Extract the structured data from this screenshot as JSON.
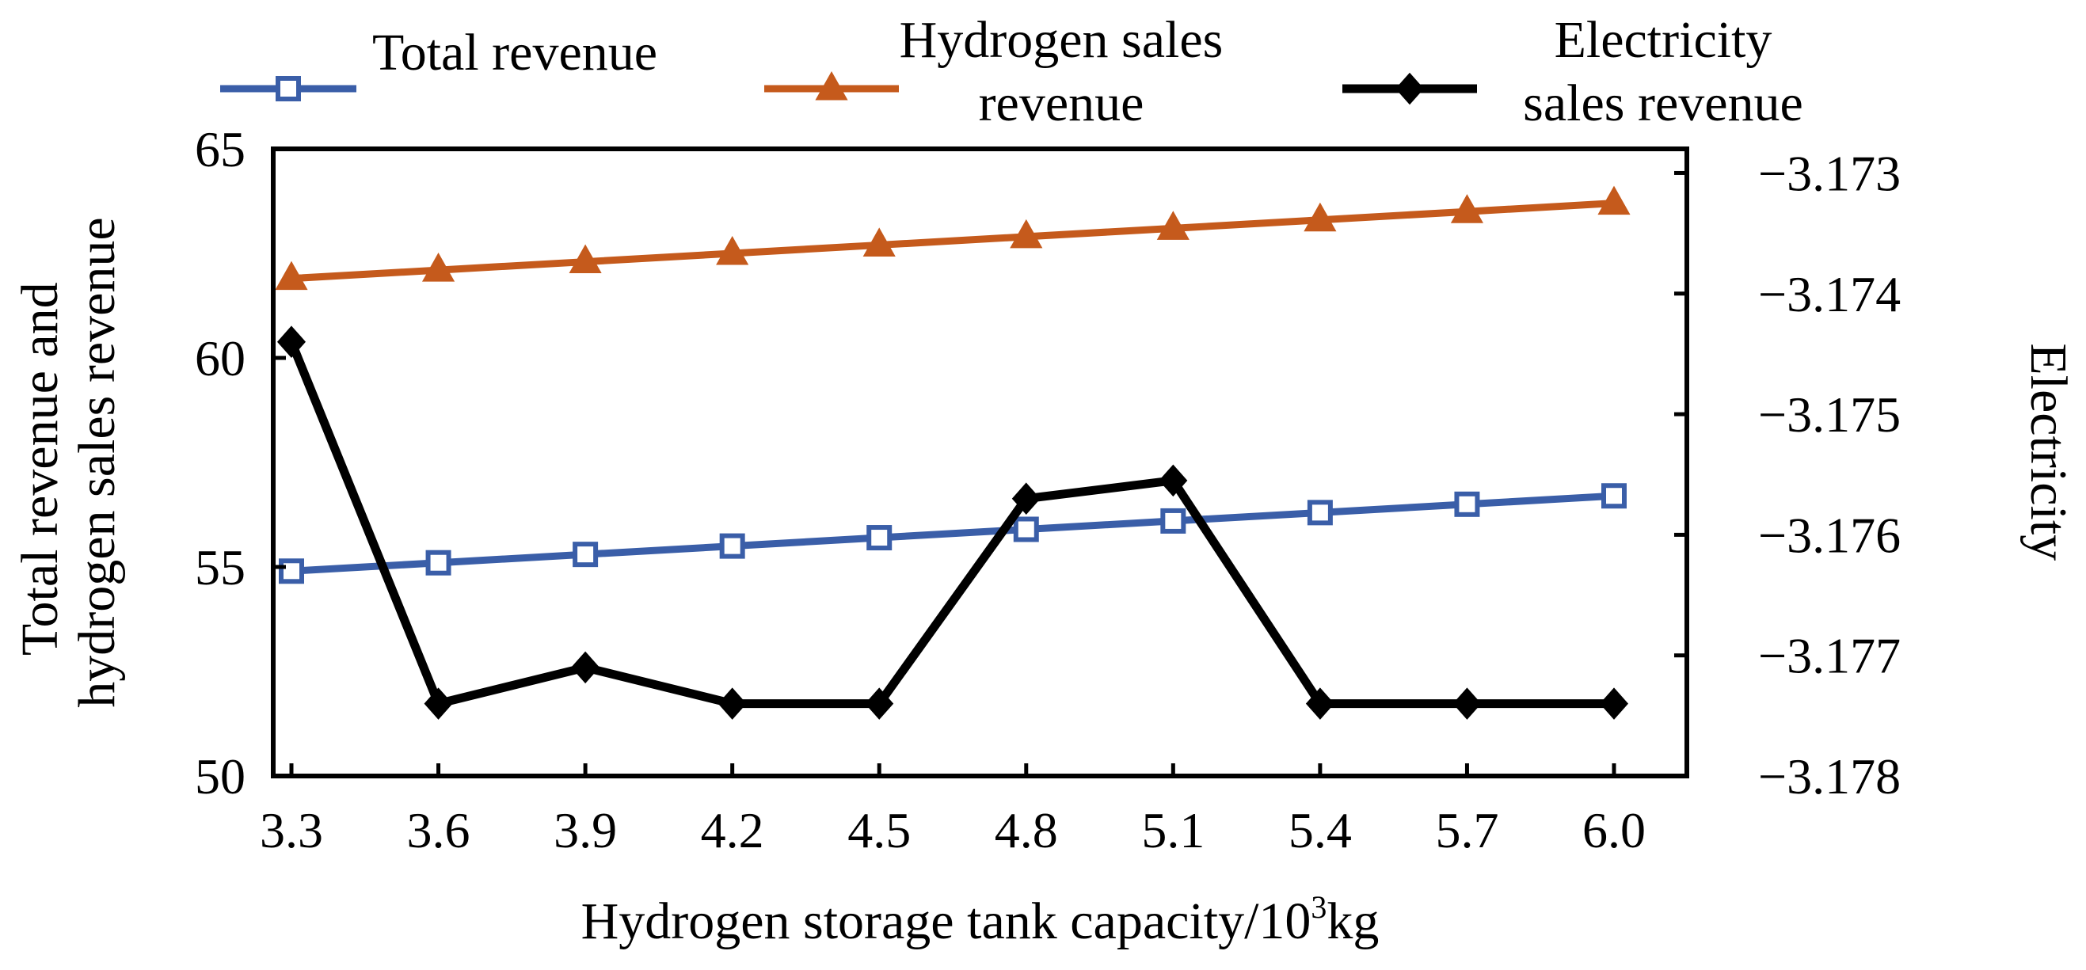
{
  "chart_data": {
    "type": "line",
    "xlabel": "Hydrogen storage tank capacity/10",
    "xlabel_sup": "3",
    "xlabel_unit": "kg",
    "x_ticks": [
      "3.3",
      "3.6",
      "3.9",
      "4.2",
      "4.5",
      "4.8",
      "5.1",
      "5.4",
      "5.7",
      "6.0"
    ],
    "ylabel_left": [
      "Total revenue and",
      "hydrogen sales revenue"
    ],
    "ylabel_right": [
      "Electricity",
      "sales revenue"
    ],
    "ylim_left": [
      50,
      65
    ],
    "yticks_left": [
      "50",
      "55",
      "60",
      "65"
    ],
    "ylim_right": [
      -3.178,
      -3.1728
    ],
    "yticks_right": [
      "−3.178",
      "−3.177",
      "−3.176",
      "−3.175",
      "−3.174",
      "−3.173"
    ],
    "grid": false,
    "legend_position": "top",
    "series": [
      {
        "name": "Total revenue",
        "legend_lines": [
          "Total revenue"
        ],
        "axis": "left",
        "color": "#3a5ea8",
        "marker": "square-open",
        "x": [
          3.3,
          3.6,
          3.9,
          4.2,
          4.5,
          4.8,
          5.1,
          5.4,
          5.7,
          6.0
        ],
        "values": [
          54.9,
          55.1,
          55.3,
          55.5,
          55.7,
          55.9,
          56.1,
          56.3,
          56.5,
          56.7
        ]
      },
      {
        "name": "Hydrogen sales revenue",
        "legend_lines": [
          "Hydrogen sales",
          "revenue"
        ],
        "axis": "left",
        "color": "#c55a1c",
        "marker": "triangle",
        "x": [
          3.3,
          3.6,
          3.9,
          4.2,
          4.5,
          4.8,
          5.1,
          5.4,
          5.7,
          6.0
        ],
        "values": [
          61.9,
          62.1,
          62.3,
          62.5,
          62.7,
          62.9,
          63.1,
          63.3,
          63.5,
          63.7
        ]
      },
      {
        "name": "Electricity sales revenue",
        "legend_lines": [
          "Electricity",
          "sales revenue"
        ],
        "axis": "right",
        "color": "#000000",
        "marker": "diamond",
        "x": [
          3.3,
          3.6,
          3.9,
          4.2,
          4.5,
          4.8,
          5.1,
          5.4,
          5.7,
          6.0
        ],
        "values": [
          -3.1744,
          -3.1774,
          -3.1771,
          -3.1774,
          -3.1774,
          -3.1757,
          -3.17555,
          -3.1774,
          -3.1774,
          -3.1774
        ]
      }
    ]
  }
}
